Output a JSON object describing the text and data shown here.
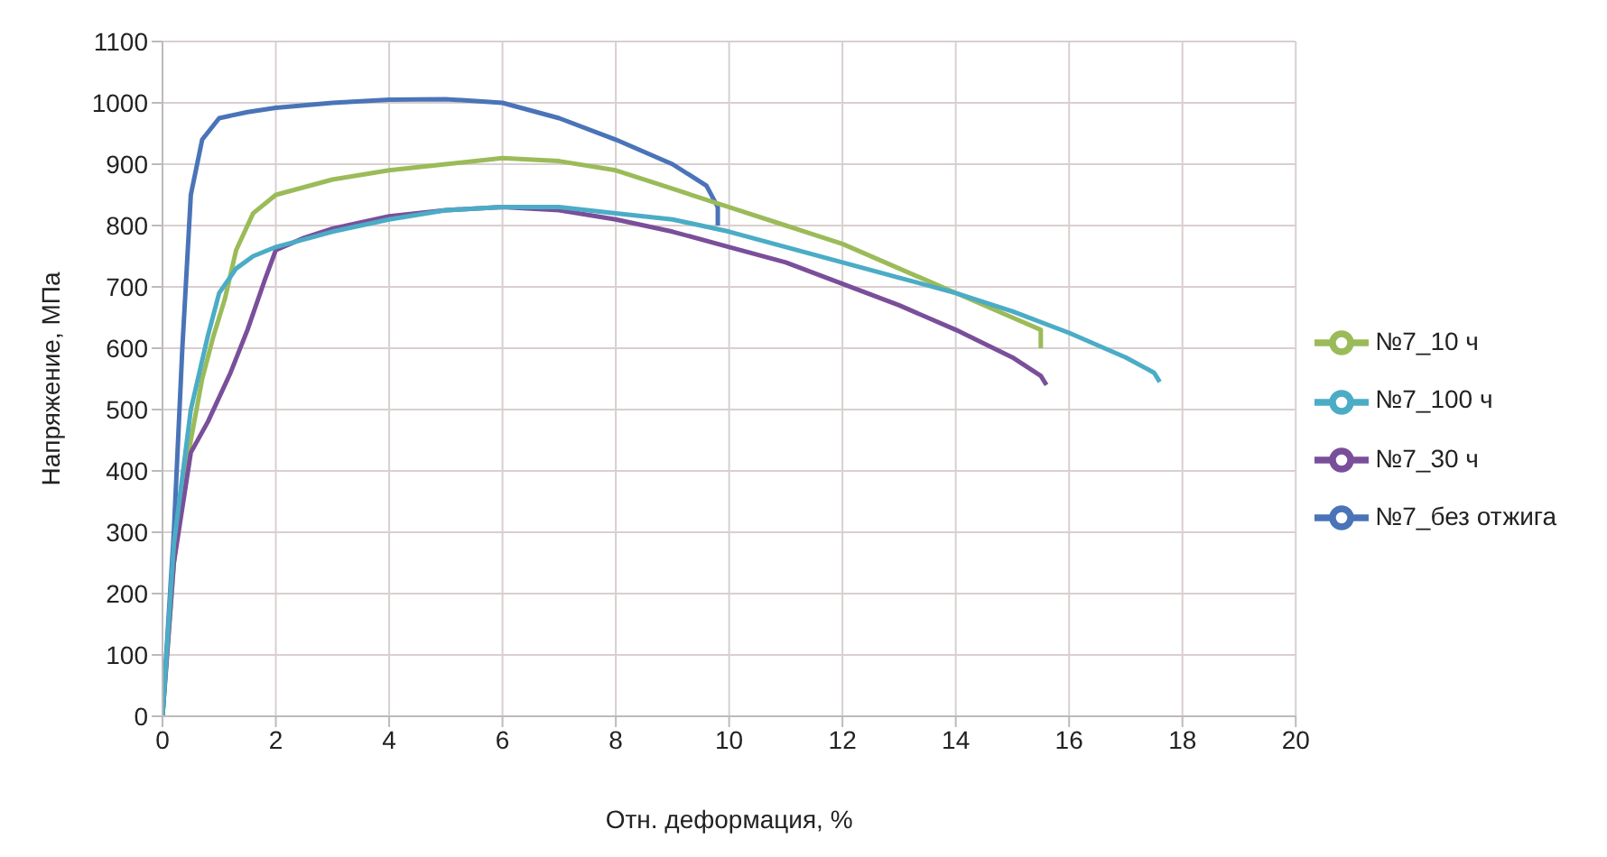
{
  "chart_data": {
    "type": "line",
    "xlabel": "Отн. деформация, %",
    "ylabel": "Напряжение, МПа",
    "xlim": [
      0,
      20
    ],
    "xticks": [
      0,
      2,
      4,
      6,
      8,
      10,
      12,
      14,
      16,
      18,
      20
    ],
    "ylim": [
      0,
      1100
    ],
    "yticks": [
      0,
      100,
      200,
      300,
      400,
      500,
      600,
      700,
      800,
      900,
      1000,
      1100
    ],
    "grid": true,
    "legend": "right",
    "marker": "none",
    "line_style": "solid",
    "series": [
      {
        "name": "№7_без отжига",
        "color": "#4a74b8",
        "x": [
          0,
          0.2,
          0.35,
          0.5,
          0.7,
          1,
          1.5,
          2,
          3,
          4,
          5,
          6,
          7,
          8,
          9,
          9.6,
          9.8,
          9.8
        ],
        "values": [
          0,
          300,
          600,
          850,
          940,
          975,
          985,
          992,
          1000,
          1005,
          1006,
          1000,
          975,
          940,
          900,
          865,
          830,
          800
        ]
      },
      {
        "name": "№7_10 ч",
        "color": "#9bbb59",
        "x": [
          0,
          0.2,
          0.4,
          0.7,
          0.9,
          1.1,
          1.3,
          1.6,
          2,
          3,
          4,
          5,
          6,
          7,
          8,
          9,
          10,
          11,
          12,
          13,
          14,
          15,
          15.5,
          15.5
        ],
        "values": [
          0,
          250,
          400,
          550,
          620,
          680,
          760,
          820,
          850,
          875,
          890,
          900,
          910,
          905,
          890,
          860,
          830,
          800,
          770,
          730,
          690,
          650,
          630,
          600
        ]
      },
      {
        "name": "№7_30 ч",
        "color": "#7a4f9a",
        "x": [
          0,
          0.2,
          0.5,
          0.8,
          1.2,
          1.5,
          1.8,
          2,
          2.5,
          3,
          4,
          5,
          6,
          7,
          8,
          9,
          10,
          11,
          12,
          13,
          14,
          15,
          15.5,
          15.6
        ],
        "values": [
          0,
          250,
          430,
          480,
          560,
          630,
          710,
          760,
          780,
          795,
          815,
          825,
          830,
          825,
          810,
          790,
          765,
          740,
          705,
          670,
          630,
          585,
          555,
          540
        ]
      },
      {
        "name": "№7_100 ч",
        "color": "#4bacc6",
        "x": [
          0,
          0.2,
          0.5,
          0.8,
          1,
          1.3,
          1.6,
          2,
          3,
          4,
          5,
          6,
          7,
          8,
          9,
          10,
          11,
          12,
          13,
          14,
          15,
          16,
          17,
          17.5,
          17.6
        ],
        "values": [
          0,
          280,
          500,
          620,
          690,
          730,
          750,
          765,
          790,
          810,
          825,
          830,
          830,
          820,
          810,
          790,
          765,
          740,
          715,
          690,
          660,
          625,
          585,
          560,
          545
        ]
      }
    ]
  }
}
